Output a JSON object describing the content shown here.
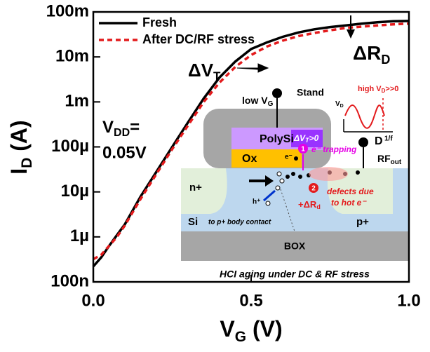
{
  "chart_data": {
    "type": "line",
    "y_log": true,
    "x_label": {
      "text": "V",
      "sub": "G",
      "after": " (V)"
    },
    "y_label": {
      "text": "I",
      "sub": "D",
      "after": " (A)"
    },
    "xlim": [
      0,
      1
    ],
    "xticks": [
      {
        "value": 0,
        "label": "0.0"
      },
      0.5,
      {
        "value": 1,
        "label": "1.0"
      }
    ],
    "ylim": [
      1e-07,
      0.1
    ],
    "yticks": [
      {
        "value": 1e-07,
        "label": "100n"
      },
      {
        "value": 1e-06,
        "label": "1µ"
      },
      {
        "value": 1e-05,
        "label": "10µ"
      },
      {
        "value": 0.0001,
        "label": "100µ"
      },
      {
        "value": 0.001,
        "label": "1m"
      },
      {
        "value": 0.01,
        "label": "10m"
      },
      {
        "value": 0.1,
        "label": "100m"
      }
    ],
    "legend": "top-left",
    "x": [
      0,
      0.025,
      0.05,
      0.075,
      0.1,
      0.15,
      0.2,
      0.25,
      0.3,
      0.35,
      0.4,
      0.45,
      0.5,
      0.55,
      0.6,
      0.65,
      0.7,
      0.75,
      0.8,
      0.85,
      0.9,
      0.95,
      1
    ],
    "series": [
      {
        "name": "Fresh",
        "color": "#000000",
        "line_style": "solid",
        "values": [
          2.2e-07,
          3.5e-07,
          6.3e-07,
          1.1e-06,
          1.9e-06,
          7.9e-06,
          2.8e-05,
          0.0001,
          0.00035,
          0.0012,
          0.0035,
          0.0079,
          0.015,
          0.021,
          0.028,
          0.035,
          0.041,
          0.046,
          0.05,
          0.055,
          0.059,
          0.062,
          0.063
        ]
      },
      {
        "name": "After DC/RF stress",
        "color": "#e31a1c",
        "line_style": "dashed",
        "values": [
          3.2e-07,
          4e-07,
          6.3e-07,
          1e-06,
          1.8e-06,
          7e-06,
          2.5e-05,
          8.9e-05,
          0.0003,
          0.001,
          0.0027,
          0.006,
          0.011,
          0.017,
          0.023,
          0.029,
          0.034,
          0.039,
          0.044,
          0.047,
          0.05,
          0.053,
          0.055
        ]
      }
    ],
    "annotations": {
      "delta_vt": {
        "text": "ΔV",
        "sub": "T"
      },
      "delta_rd": {
        "text": "ΔR",
        "sub": "D"
      },
      "vdd": {
        "text": "V",
        "sub": "DD",
        "after": "=",
        "line2": "0.05V"
      }
    },
    "inset": {
      "low_vg": {
        "text": "low V",
        "sub": "G"
      },
      "stand": "Stand",
      "polysi": "PolySi",
      "dvt": {
        "text": "ΔV",
        "sub": "T",
        "after": ">0"
      },
      "ox": "Ox",
      "electron": "e⁻",
      "step1": "1",
      "trapping": "e⁻ trapping",
      "drain": "D",
      "rfout": {
        "text": "RF",
        "sub": "out"
      },
      "wave_vd": {
        "text": "V",
        "sub": "D"
      },
      "wave_f": "1/f",
      "wave_high": {
        "text": "high V",
        "sub": "D",
        "after": ">>0"
      },
      "nplus": "n+",
      "step2": "2",
      "defects": [
        "defects due",
        "to hot e⁻"
      ],
      "drd": {
        "text": "+ΔR",
        "sub": "d"
      },
      "hole": "h⁺",
      "si": "Si",
      "body": "to p+ body contact",
      "pplus": "p+",
      "box": "BOX",
      "caption": "HCI aging under DC & RF stress"
    }
  }
}
